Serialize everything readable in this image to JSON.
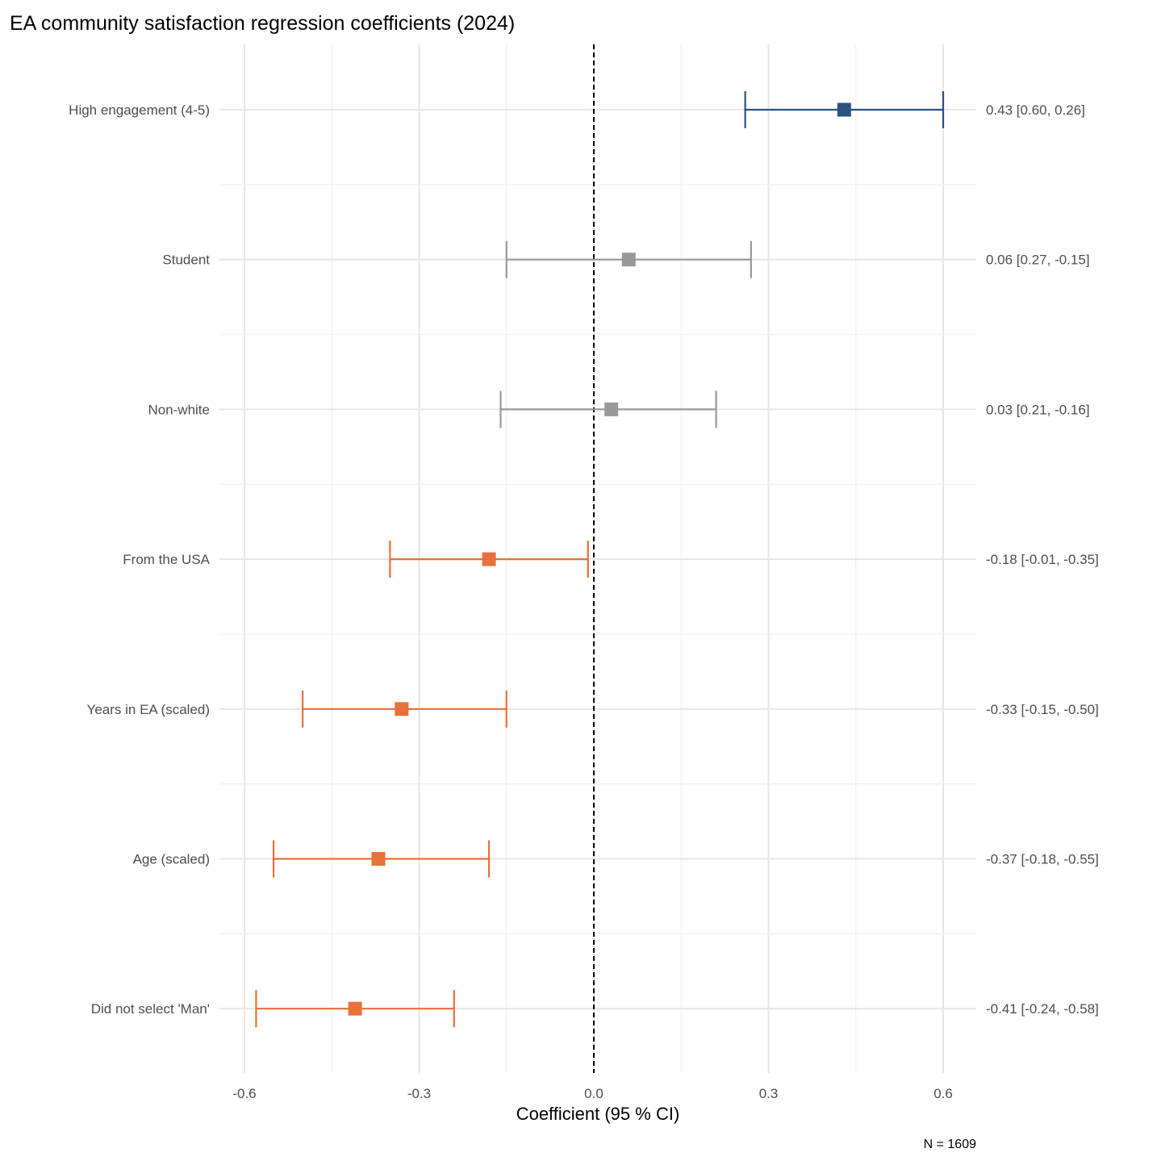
{
  "chart_data": {
    "type": "forest",
    "title": "EA community satisfaction regression coefficients (2024)",
    "xlabel": "Coefficient (95 % CI)",
    "caption": "N = 1609",
    "xlim": [
      -0.65,
      0.65
    ],
    "xticks": [
      -0.6,
      -0.3,
      0.0,
      0.3,
      0.6
    ],
    "xtick_labels": [
      "-0.6",
      "-0.3",
      "0.0",
      "0.3",
      "0.6"
    ],
    "reference_line": 0.0,
    "grid": true,
    "colors": {
      "positive": "#2b5281",
      "nonsignificant": "#999999",
      "negative": "#e8703a"
    },
    "rows": [
      {
        "label": "High engagement (4-5)",
        "estimate": 0.43,
        "ci_high": 0.6,
        "ci_low": 0.26,
        "group": "positive",
        "annotation": "0.43 [0.60, 0.26]"
      },
      {
        "label": "Student",
        "estimate": 0.06,
        "ci_high": 0.27,
        "ci_low": -0.15,
        "group": "nonsignificant",
        "annotation": "0.06 [0.27, -0.15]"
      },
      {
        "label": "Non-white",
        "estimate": 0.03,
        "ci_high": 0.21,
        "ci_low": -0.16,
        "group": "nonsignificant",
        "annotation": "0.03 [0.21, -0.16]"
      },
      {
        "label": "From the USA",
        "estimate": -0.18,
        "ci_high": -0.01,
        "ci_low": -0.35,
        "group": "negative",
        "annotation": "-0.18 [-0.01, -0.35]"
      },
      {
        "label": "Years in EA (scaled)",
        "estimate": -0.33,
        "ci_high": -0.15,
        "ci_low": -0.5,
        "group": "negative",
        "annotation": "-0.33 [-0.15, -0.50]"
      },
      {
        "label": "Age (scaled)",
        "estimate": -0.37,
        "ci_high": -0.18,
        "ci_low": -0.55,
        "group": "negative",
        "annotation": "-0.37 [-0.18, -0.55]"
      },
      {
        "label": "Did not select 'Man'",
        "estimate": -0.41,
        "ci_high": -0.24,
        "ci_low": -0.58,
        "group": "negative",
        "annotation": "-0.41 [-0.24, -0.58]"
      }
    ]
  }
}
